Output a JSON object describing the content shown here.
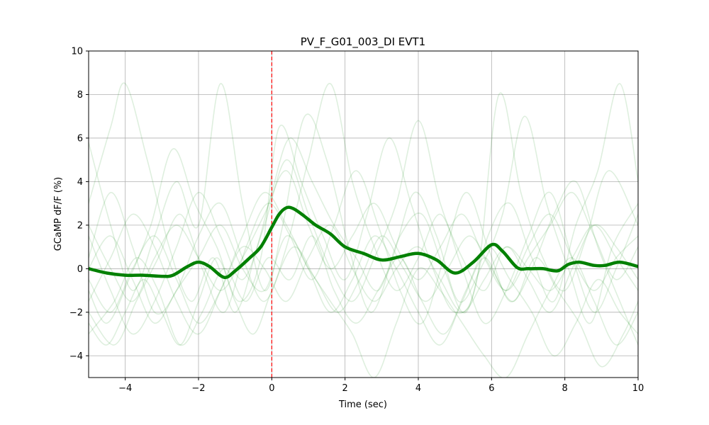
{
  "chart_data": {
    "type": "line",
    "title": "PV_F_G01_003_DI EVT1",
    "xlabel": "Time (sec)",
    "ylabel": "GCaMP dF/F (%)",
    "xlim": [
      -5,
      10
    ],
    "ylim": [
      -5,
      10
    ],
    "x_ticks": [
      -4,
      -2,
      0,
      2,
      4,
      6,
      8,
      10
    ],
    "x_tick_labels": [
      "−4",
      "−2",
      "0",
      "2",
      "4",
      "6",
      "8",
      "10"
    ],
    "y_ticks": [
      -4,
      -2,
      0,
      2,
      4,
      6,
      8,
      10
    ],
    "y_tick_labels": [
      "−4",
      "−2",
      "0",
      "2",
      "4",
      "6",
      "8",
      "10"
    ],
    "grid": true,
    "event_marker": {
      "x": 0,
      "color": "#ff0000",
      "style": "dashed"
    },
    "mean_color": "#008000",
    "trial_color": "#008000",
    "mean_series": {
      "x": [
        -5,
        -4.5,
        -4,
        -3.5,
        -3,
        -2.7,
        -2.3,
        -2,
        -1.7,
        -1.3,
        -1,
        -0.6,
        -0.3,
        0,
        0.2,
        0.4,
        0.6,
        0.9,
        1.2,
        1.6,
        2,
        2.5,
        3,
        3.5,
        4,
        4.5,
        5,
        5.5,
        6,
        6.3,
        6.7,
        7,
        7.4,
        7.8,
        8.1,
        8.4,
        8.8,
        9.1,
        9.5,
        10
      ],
      "y": [
        0,
        -0.2,
        -0.3,
        -0.3,
        -0.35,
        -0.3,
        0.1,
        0.3,
        0.1,
        -0.4,
        -0.1,
        0.5,
        1.0,
        1.9,
        2.5,
        2.8,
        2.75,
        2.4,
        2.0,
        1.6,
        1.0,
        0.7,
        0.4,
        0.55,
        0.7,
        0.4,
        -0.2,
        0.3,
        1.1,
        0.8,
        0.05,
        0.0,
        0.0,
        -0.1,
        0.2,
        0.3,
        0.15,
        0.15,
        0.3,
        0.1
      ]
    },
    "trial_series": [
      {
        "x": [
          -5,
          -4.4,
          -4,
          -3.4,
          -2.8,
          -2.2,
          -1.6,
          -1,
          -0.4,
          0,
          0.5,
          1.1,
          1.7,
          2.3,
          2.9,
          3.5,
          4.1,
          4.7,
          5.3,
          5.9,
          6.5,
          7.1,
          7.7,
          8.3,
          8.9,
          9.5,
          10
        ],
        "y": [
          3.0,
          6.5,
          8.5,
          5.0,
          1.0,
          -1.5,
          0.5,
          -2.0,
          1.0,
          3.5,
          6.0,
          4.0,
          2.0,
          0.5,
          -1.0,
          1.5,
          2.5,
          0.0,
          -2.0,
          1.5,
          3.0,
          0.5,
          -1.5,
          2.0,
          4.5,
          8.5,
          4.0
        ]
      },
      {
        "x": [
          -5,
          -4.4,
          -3.8,
          -3.2,
          -2.6,
          -2,
          -1.4,
          -0.8,
          -0.2,
          0.3,
          0.9,
          1.5,
          2.1,
          2.7,
          3.3,
          3.9,
          4.5,
          5.1,
          5.7,
          6.3,
          6.9,
          7.5,
          8.1,
          8.7,
          9.3,
          10
        ],
        "y": [
          5.8,
          2.0,
          -1.0,
          1.5,
          4.0,
          2.0,
          8.5,
          3.0,
          -1.0,
          2.0,
          7.0,
          5.0,
          1.0,
          -2.0,
          0.5,
          3.5,
          1.5,
          -1.5,
          0.0,
          2.5,
          7.0,
          3.0,
          0.0,
          -2.5,
          1.0,
          3.0
        ]
      },
      {
        "x": [
          -5,
          -4.5,
          -3.9,
          -3.3,
          -2.7,
          -2.1,
          -1.5,
          -0.9,
          -0.3,
          0.2,
          0.8,
          1.4,
          2.0,
          2.6,
          3.2,
          3.8,
          4.4,
          5.0,
          5.6,
          6.2,
          6.8,
          7.4,
          8.0,
          8.6,
          9.2,
          10
        ],
        "y": [
          -1.0,
          -2.5,
          -0.5,
          2.0,
          5.5,
          3.0,
          1.0,
          -1.5,
          0.5,
          6.5,
          4.0,
          1.5,
          -0.5,
          2.5,
          6.0,
          3.0,
          0.0,
          -2.0,
          -0.5,
          8.0,
          3.5,
          0.5,
          -1.0,
          1.5,
          4.5,
          2.0
        ]
      },
      {
        "x": [
          -5,
          -4.4,
          -3.8,
          -3.2,
          -2.6,
          -2,
          -1.4,
          -0.8,
          -0.2,
          0.4,
          1.0,
          1.6,
          2.2,
          2.8,
          3.4,
          4.0,
          4.6,
          5.2,
          5.8,
          6.4,
          7.0,
          7.6,
          8.2,
          8.8,
          9.4,
          10
        ],
        "y": [
          0.5,
          3.5,
          1.0,
          -2.0,
          -1.0,
          1.5,
          3.0,
          0.5,
          -1.5,
          1.0,
          5.0,
          8.5,
          4.0,
          1.0,
          -1.0,
          0.5,
          2.5,
          0.0,
          -2.5,
          -1.0,
          1.5,
          3.5,
          0.5,
          -2.0,
          0.0,
          2.5
        ]
      },
      {
        "x": [
          -5,
          -4.3,
          -3.7,
          -3.1,
          -2.5,
          -1.9,
          -1.3,
          -0.7,
          -0.1,
          0.5,
          1.1,
          1.7,
          2.3,
          2.9,
          3.5,
          4.1,
          4.7,
          5.3,
          5.9,
          6.5,
          7.1,
          7.7,
          8.3,
          8.9,
          9.5,
          10
        ],
        "y": [
          -2.0,
          -3.5,
          -1.5,
          0.5,
          2.5,
          0.0,
          -2.0,
          1.0,
          3.0,
          1.5,
          -0.5,
          2.0,
          4.5,
          2.0,
          -1.0,
          -2.5,
          0.5,
          3.5,
          1.0,
          -1.5,
          0.0,
          2.5,
          4.0,
          1.0,
          -1.5,
          -3.5
        ]
      },
      {
        "x": [
          -5,
          -4.4,
          -3.8,
          -3.2,
          -2.6,
          -2,
          -1.4,
          -0.8,
          -0.2,
          0.4,
          1.0,
          1.6,
          2.2,
          2.8,
          3.4,
          4.0,
          4.6,
          5.2,
          5.8,
          6.4,
          7.0,
          7.6,
          8.2,
          8.8,
          9.4,
          10
        ],
        "y": [
          1.5,
          -1.0,
          -3.0,
          -1.5,
          1.0,
          3.5,
          1.5,
          -0.5,
          2.0,
          5.0,
          2.5,
          0.0,
          -1.5,
          0.5,
          3.0,
          6.8,
          3.0,
          0.5,
          -1.0,
          1.0,
          -0.5,
          -2.0,
          0.0,
          2.0,
          1.0,
          -0.5
        ]
      },
      {
        "x": [
          -5,
          -4.3,
          -3.7,
          -3.1,
          -2.5,
          -1.9,
          -1.3,
          -0.7,
          -0.1,
          0.5,
          1.1,
          1.7,
          2.3,
          2.9,
          3.5,
          4.1,
          4.7,
          5.3,
          5.9,
          6.5,
          7.1,
          7.7,
          8.3,
          8.9,
          9.5,
          10
        ],
        "y": [
          -3.0,
          -1.5,
          0.5,
          -1.0,
          -3.5,
          -2.0,
          0.0,
          -1.5,
          0.5,
          -0.5,
          1.5,
          -1.0,
          -2.5,
          -1.0,
          0.5,
          -1.5,
          -3.0,
          -1.0,
          1.0,
          -0.5,
          -2.0,
          -4.0,
          -2.5,
          -0.5,
          -2.0,
          -3.0
        ]
      },
      {
        "x": [
          -5,
          -4.4,
          -3.8,
          -3.2,
          -2.6,
          -2,
          -1.4,
          -0.8,
          -0.2,
          0.4,
          1.0,
          1.6,
          2.2,
          2.8,
          3.4,
          4.0,
          4.6,
          5.2,
          5.8,
          6.4,
          7.0,
          7.6,
          8.2,
          8.8,
          9.4,
          10
        ],
        "y": [
          0.0,
          1.5,
          -0.5,
          -2.5,
          -1.0,
          0.5,
          2.0,
          0.0,
          -1.0,
          1.5,
          0.0,
          -1.5,
          -3.0,
          -5.0,
          -2.5,
          0.0,
          -1.0,
          -2.5,
          -4.0,
          -5.0,
          -3.0,
          -1.0,
          0.5,
          -1.5,
          -3.5,
          -2.0
        ]
      },
      {
        "x": [
          -5,
          -4.4,
          -3.8,
          -3.2,
          -2.6,
          -2,
          -1.4,
          -0.8,
          -0.2,
          0.4,
          1.0,
          1.6,
          2.2,
          2.8,
          3.4,
          4.0,
          4.6,
          5.2,
          5.8,
          6.4,
          7.0,
          7.6,
          8.2,
          8.8,
          9.4,
          10
        ],
        "y": [
          -1.5,
          0.5,
          2.5,
          1.0,
          -1.5,
          -3.0,
          -1.0,
          1.5,
          3.5,
          2.0,
          0.0,
          -2.0,
          -0.5,
          1.5,
          0.0,
          -2.0,
          -3.5,
          -1.5,
          0.5,
          -1.0,
          1.0,
          2.5,
          0.5,
          -1.0,
          0.5,
          1.5
        ]
      },
      {
        "x": [
          -5,
          -4.5,
          -4.0,
          -3.5,
          -3.0,
          -2.5,
          -2.0,
          -1.5,
          -1.0,
          -0.5,
          0.0,
          0.6,
          1.2,
          1.8,
          2.4,
          3.0,
          3.6,
          4.2,
          4.8,
          5.4,
          6.0,
          6.6,
          7.2,
          7.8,
          8.4,
          9.0,
          9.6,
          10
        ],
        "y": [
          -2.5,
          -3.5,
          -2.0,
          -0.5,
          -2.0,
          -3.5,
          -1.5,
          0.5,
          -1.5,
          -3.0,
          -1.0,
          1.0,
          -0.5,
          -2.0,
          -0.5,
          1.5,
          0.0,
          -1.5,
          0.0,
          1.5,
          0.0,
          -1.5,
          0.5,
          -1.0,
          -2.5,
          -4.5,
          -3.0,
          -1.5
        ]
      },
      {
        "x": [
          -5,
          -4.4,
          -3.8,
          -3.2,
          -2.6,
          -2,
          -1.4,
          -0.8,
          -0.2,
          0.4,
          1.0,
          1.6,
          2.2,
          2.8,
          3.4,
          4.0,
          4.6,
          5.2,
          5.8,
          6.4,
          7.0,
          7.6,
          8.2,
          8.8,
          9.4,
          10
        ],
        "y": [
          2.0,
          0.0,
          -1.5,
          0.5,
          2.0,
          0.5,
          -1.0,
          0.5,
          2.5,
          4.5,
          2.0,
          0.0,
          1.5,
          3.0,
          1.0,
          -0.5,
          1.0,
          2.5,
          0.5,
          -1.0,
          0.5,
          2.0,
          3.5,
          1.5,
          -0.5,
          1.0
        ]
      },
      {
        "x": [
          -5,
          -4.4,
          -3.8,
          -3.2,
          -2.6,
          -2,
          -1.4,
          -0.8,
          -0.2,
          0.4,
          1.0,
          1.6,
          2.2,
          2.8,
          3.4,
          4.0,
          4.6,
          5.2,
          5.8,
          6.4,
          7.0,
          7.6,
          8.2,
          8.8,
          9.4,
          10
        ],
        "y": [
          -0.5,
          -2.0,
          0.0,
          1.5,
          -0.5,
          -2.5,
          -1.0,
          1.0,
          0.0,
          -1.5,
          0.5,
          2.0,
          0.0,
          -1.5,
          0.0,
          1.0,
          -0.5,
          -2.0,
          -0.5,
          1.0,
          0.0,
          -1.0,
          0.5,
          2.0,
          0.5,
          -1.0
        ]
      }
    ]
  }
}
